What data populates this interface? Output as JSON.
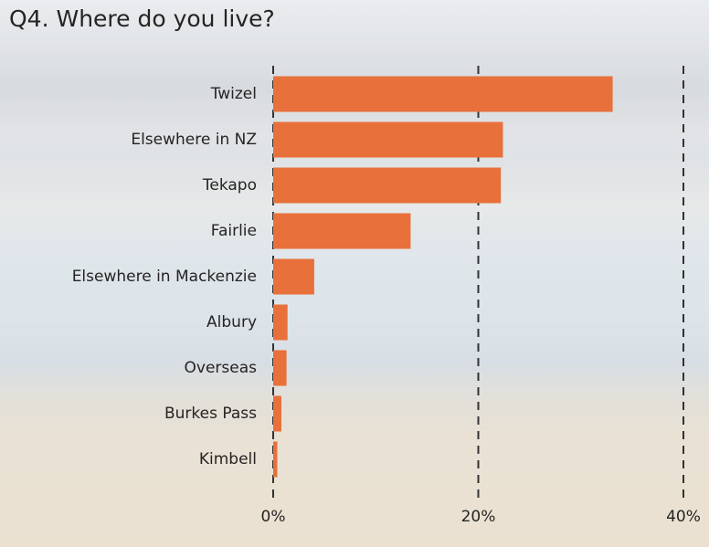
{
  "chart_data": {
    "type": "bar",
    "orientation": "horizontal",
    "title": "Q4. Where do you live?",
    "categories": [
      "Twizel",
      "Elsewhere in NZ",
      "Tekapo",
      "Fairlie",
      "Elsewhere in Mackenzie",
      "Albury",
      "Overseas",
      "Burkes Pass",
      "Kimbell"
    ],
    "values": [
      33.1,
      22.4,
      22.2,
      13.4,
      4.0,
      1.4,
      1.3,
      0.8,
      0.4
    ],
    "color": "#e8703a",
    "xlim": [
      0,
      40
    ],
    "xticks": [
      {
        "value": 0,
        "label": "0%"
      },
      {
        "value": 20,
        "label": "20%"
      },
      {
        "value": 40,
        "label": "40%"
      }
    ],
    "grid": true
  }
}
